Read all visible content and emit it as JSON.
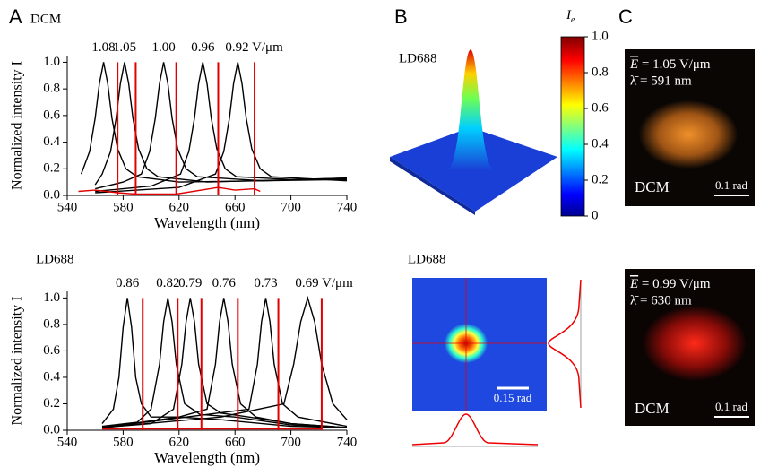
{
  "chart_data": [
    {
      "type": "line",
      "title": "DCM",
      "xlabel": "Wavelength (nm)",
      "ylabel": "Normalized intensity I",
      "xlim": [
        540,
        740
      ],
      "ylim": [
        0,
        1.05
      ],
      "xticks": [
        540,
        580,
        620,
        660,
        700,
        740
      ],
      "yticks": [
        {
          "value": 0,
          "label": "0.0"
        },
        0.2,
        0.4,
        0.6,
        0.8,
        {
          "value": 1,
          "label": "1.0"
        }
      ],
      "peak_labels": [
        "1.08",
        "1.05",
        "1.00",
        "0.96",
        "0.92 V/μm"
      ],
      "series": [
        {
          "color": "#000000",
          "x": [
            550,
            556,
            560,
            563,
            566,
            569,
            572,
            576,
            582,
            590,
            620,
            680,
            740
          ],
          "values": [
            0.16,
            0.33,
            0.58,
            0.84,
            1.0,
            0.84,
            0.58,
            0.35,
            0.2,
            0.14,
            0.1,
            0.11,
            0.13
          ]
        },
        {
          "color": "#000000",
          "x": [
            560,
            565,
            571,
            575,
            578,
            581,
            584,
            587,
            591,
            597,
            605,
            640,
            740
          ],
          "values": [
            0.08,
            0.16,
            0.33,
            0.58,
            0.84,
            1.0,
            0.84,
            0.58,
            0.35,
            0.2,
            0.14,
            0.1,
            0.13
          ]
        },
        {
          "color": "#000000",
          "x": [
            560,
            580,
            593,
            599,
            603,
            606,
            609,
            612,
            615,
            619,
            625,
            633,
            680,
            740
          ],
          "values": [
            0.05,
            0.1,
            0.16,
            0.33,
            0.58,
            0.84,
            1.0,
            0.84,
            0.58,
            0.35,
            0.2,
            0.14,
            0.11,
            0.12
          ]
        },
        {
          "color": "#000000",
          "x": [
            560,
            600,
            621,
            627,
            631,
            634,
            637,
            640,
            643,
            647,
            653,
            661,
            700,
            740
          ],
          "values": [
            0.03,
            0.07,
            0.16,
            0.33,
            0.58,
            0.84,
            1.0,
            0.84,
            0.58,
            0.35,
            0.2,
            0.14,
            0.12,
            0.12
          ]
        },
        {
          "color": "#000000",
          "x": [
            560,
            620,
            646,
            652,
            656,
            659,
            662,
            665,
            668,
            672,
            678,
            686,
            740
          ],
          "values": [
            0.02,
            0.06,
            0.16,
            0.33,
            0.58,
            0.84,
            1.0,
            0.84,
            0.58,
            0.35,
            0.2,
            0.14,
            0.11
          ]
        },
        {
          "color": "#e00000",
          "x": [
            548,
            560,
            576,
            589,
            600,
            618,
            648,
            660,
            674,
            678
          ],
          "values": [
            0.03,
            0.04,
            0.02,
            0.01,
            0.01,
            0.01,
            0.06,
            0.04,
            0.05,
            0.03
          ]
        }
      ],
      "vlines": {
        "color": "#e00000",
        "x": [
          576,
          589,
          618,
          648,
          674
        ]
      }
    },
    {
      "type": "line",
      "title": "LD688",
      "xlabel": "Wavelength (nm)",
      "ylabel": "Normalized intensity I",
      "xlim": [
        540,
        740
      ],
      "ylim": [
        0,
        1.05
      ],
      "xticks": [
        540,
        580,
        620,
        660,
        700,
        740
      ],
      "yticks": [
        {
          "value": 0,
          "label": "0.0"
        },
        0.2,
        0.4,
        0.6,
        0.8,
        {
          "value": 1,
          "label": "1.0"
        }
      ],
      "peak_labels": [
        "0.86",
        "0.82",
        "0.79",
        "0.76",
        "0.73",
        "0.69 V/μm"
      ],
      "series": [
        {
          "color": "#000000",
          "x": [
            565,
            573,
            577,
            580,
            583,
            586,
            589,
            593,
            600,
            620,
            650,
            700,
            740
          ],
          "values": [
            0.05,
            0.16,
            0.4,
            0.78,
            1.0,
            0.78,
            0.4,
            0.2,
            0.1,
            0.1,
            0.08,
            0.03,
            0.02
          ]
        },
        {
          "color": "#000000",
          "x": [
            565,
            590,
            600,
            606,
            609,
            612,
            615,
            618,
            624,
            635,
            660,
            700,
            740
          ],
          "values": [
            0.03,
            0.06,
            0.16,
            0.5,
            0.82,
            1.0,
            0.82,
            0.5,
            0.2,
            0.12,
            0.1,
            0.04,
            0.02
          ]
        },
        {
          "color": "#000000",
          "x": [
            565,
            600,
            616,
            622,
            625,
            628,
            631,
            634,
            640,
            650,
            670,
            700,
            740
          ],
          "values": [
            0.02,
            0.05,
            0.16,
            0.5,
            0.82,
            1.0,
            0.82,
            0.5,
            0.2,
            0.13,
            0.1,
            0.05,
            0.02
          ]
        },
        {
          "color": "#000000",
          "x": [
            565,
            620,
            640,
            646,
            649,
            652,
            655,
            658,
            664,
            675,
            700,
            740
          ],
          "values": [
            0.02,
            0.1,
            0.16,
            0.5,
            0.82,
            1.0,
            0.82,
            0.5,
            0.2,
            0.1,
            0.05,
            0.02
          ]
        },
        {
          "color": "#000000",
          "x": [
            565,
            640,
            670,
            676,
            679,
            682,
            685,
            688,
            694,
            705,
            740
          ],
          "values": [
            0.02,
            0.12,
            0.16,
            0.5,
            0.82,
            1.0,
            0.82,
            0.5,
            0.2,
            0.1,
            0.03
          ]
        },
        {
          "color": "#000000",
          "x": [
            565,
            650,
            695,
            702,
            707,
            712,
            717,
            722,
            730,
            740
          ],
          "values": [
            0.02,
            0.1,
            0.2,
            0.5,
            0.82,
            1.0,
            0.82,
            0.5,
            0.2,
            0.08
          ]
        },
        {
          "color": "#e00000",
          "x": [
            565,
            722
          ],
          "values": [
            0.01,
            0.01
          ]
        }
      ],
      "vlines": {
        "color": "#e00000",
        "x": [
          594,
          619,
          636,
          662,
          691,
          722
        ]
      }
    }
  ],
  "panel_labels": [
    "A",
    "B",
    "C"
  ],
  "panel_b": {
    "top_title": "LD688",
    "bottom_title": "LD688",
    "scale_bar": "0.15 rad"
  },
  "colorbar": {
    "label": "I",
    "subscript": "e",
    "lim": [
      0,
      1
    ],
    "ticks": [
      0,
      0.2,
      0.4,
      0.6,
      0.8,
      {
        "value": 1,
        "label": "1.0"
      }
    ]
  },
  "panel_c": [
    {
      "field_symbol": "E",
      "field": " = 1.05 V/μm",
      "wavelength": "λ̄ = 591 nm",
      "dye": "DCM",
      "scale_bar": "0.1 rad"
    },
    {
      "field_symbol": "E",
      "field": " = 0.99 V/μm",
      "wavelength": "λ̄ = 630 nm",
      "dye": "DCM",
      "scale_bar": "0.1 rad"
    }
  ]
}
